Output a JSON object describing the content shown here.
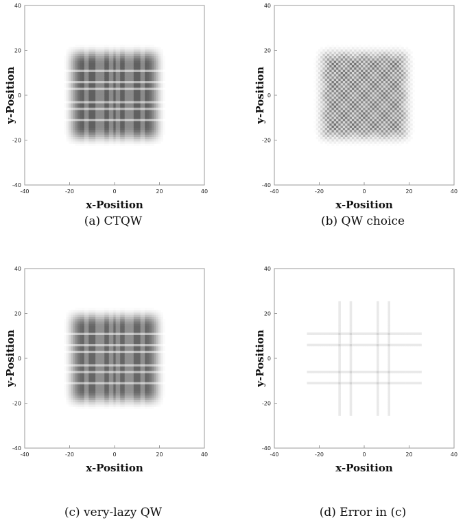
{
  "chart_data": [
    {
      "type": "heatmap",
      "variant": "ctqw",
      "caption": "(a) CTQW",
      "xlabel": "x-Position",
      "ylabel": "y-Position",
      "xlim": [
        -40,
        40
      ],
      "ylim": [
        -40,
        40
      ],
      "xticks": [
        "-40",
        "-20",
        "0",
        "20",
        "40"
      ],
      "yticks": [
        "40",
        "20",
        "0",
        "-20",
        "-40"
      ],
      "peak_intensity": 0.78,
      "colormap": [
        "#ffffff",
        "#333333"
      ],
      "grid": false
    },
    {
      "type": "heatmap",
      "variant": "checker",
      "caption": "(b) QW choice",
      "xlabel": "x-Position",
      "ylabel": "y-Position",
      "xlim": [
        -40,
        40
      ],
      "ylim": [
        -40,
        40
      ],
      "xticks": [
        "-40",
        "-20",
        "0",
        "20",
        "40"
      ],
      "yticks": [
        "40",
        "20",
        "0",
        "-20",
        "-40"
      ],
      "peak_intensity": 0.72,
      "colormap": [
        "#ffffff",
        "#333333"
      ],
      "grid": false
    },
    {
      "type": "heatmap",
      "variant": "ctqw",
      "caption": "(c) very-lazy QW",
      "xlabel": "x-Position",
      "ylabel": "y-Position",
      "xlim": [
        -40,
        40
      ],
      "ylim": [
        -40,
        40
      ],
      "xticks": [
        "-40",
        "-20",
        "0",
        "20",
        "40"
      ],
      "yticks": [
        "40",
        "20",
        "0",
        "-20",
        "-40"
      ],
      "peak_intensity": 0.75,
      "colormap": [
        "#ffffff",
        "#333333"
      ],
      "grid": false
    },
    {
      "type": "heatmap",
      "variant": "error",
      "caption": "(d) Error in (c)",
      "xlabel": "x-Position",
      "ylabel": "y-Position",
      "xlim": [
        -40,
        40
      ],
      "ylim": [
        -40,
        40
      ],
      "xticks": [
        "-40",
        "-20",
        "0",
        "20",
        "40"
      ],
      "yticks": [
        "40",
        "20",
        "0",
        "-20",
        "-40"
      ],
      "peak_intensity": 0.22,
      "colormap": [
        "#ffffff",
        "#333333"
      ],
      "grid": false
    }
  ]
}
